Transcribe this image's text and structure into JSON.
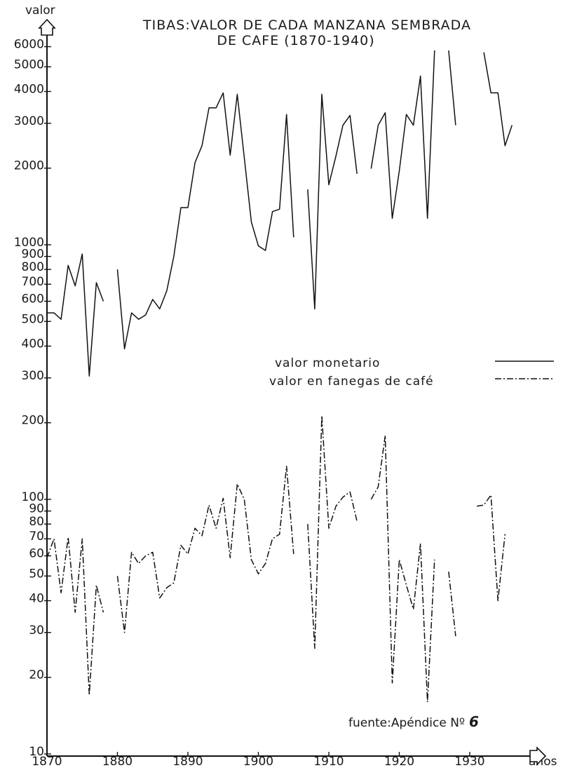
{
  "chart_data": {
    "type": "line",
    "title_line1": "TIBAS:VALOR DE CADA MANZANA SEMBRADA",
    "title_line2": "DE CAFE (1870-1940)",
    "ylabel": "valor",
    "xlabel": "años",
    "y_scale": "log",
    "ylim": [
      10,
      6000
    ],
    "xlim": [
      1870,
      1936
    ],
    "y_ticks": [
      10,
      20,
      30,
      40,
      50,
      60,
      70,
      80,
      90,
      100,
      200,
      300,
      400,
      500,
      600,
      700,
      800,
      900,
      1000,
      2000,
      3000,
      4000,
      5000,
      6000
    ],
    "y_tick_labels": [
      "10",
      "20",
      "30",
      "40",
      "50",
      "60",
      "70",
      "80",
      "90",
      "100",
      "200",
      "300",
      "400",
      "500",
      "600",
      "700",
      "800",
      "900",
      "1000",
      "2000",
      "3000",
      "4000",
      "5000",
      "6000"
    ],
    "x_ticks": [
      1870,
      1880,
      1890,
      1900,
      1910,
      1920,
      1930
    ],
    "x_tick_labels": [
      "1870",
      "1880",
      "1890",
      "1900",
      "1910",
      "1920",
      "1930"
    ],
    "grid": false,
    "legend": "center-right",
    "source_label": "fuente:Apéndice Nº",
    "source_number": "6",
    "series": [
      {
        "name": "valor monetario",
        "style": "solid",
        "segments": [
          [
            [
              1870,
              540
            ],
            [
              1871,
              540
            ],
            [
              1872,
              510
            ],
            [
              1873,
              830
            ],
            [
              1874,
              690
            ],
            [
              1875,
              920
            ],
            [
              1876,
              305
            ],
            [
              1877,
              710
            ],
            [
              1878,
              600
            ]
          ],
          [
            [
              1880,
              800
            ],
            [
              1881,
              390
            ],
            [
              1882,
              540
            ],
            [
              1883,
              510
            ],
            [
              1884,
              530
            ],
            [
              1885,
              610
            ],
            [
              1886,
              560
            ],
            [
              1887,
              660
            ],
            [
              1888,
              900
            ],
            [
              1889,
              1400
            ],
            [
              1890,
              1400
            ],
            [
              1891,
              2100
            ],
            [
              1892,
              2450
            ],
            [
              1893,
              3450
            ],
            [
              1894,
              3450
            ],
            [
              1895,
              3950
            ],
            [
              1896,
              2250
            ],
            [
              1897,
              3900
            ],
            [
              1898,
              2200
            ],
            [
              1899,
              1230
            ],
            [
              1900,
              990
            ],
            [
              1901,
              950
            ],
            [
              1902,
              1350
            ],
            [
              1903,
              1380
            ],
            [
              1904,
              3250
            ],
            [
              1905,
              1070
            ]
          ],
          [
            [
              1907,
              1650
            ],
            [
              1908,
              560
            ],
            [
              1909,
              3900
            ],
            [
              1910,
              1720
            ],
            [
              1911,
              2230
            ],
            [
              1912,
              2950
            ],
            [
              1913,
              3220
            ],
            [
              1914,
              1900
            ]
          ],
          [
            [
              1916,
              1990
            ],
            [
              1917,
              2950
            ],
            [
              1918,
              3300
            ],
            [
              1919,
              1270
            ],
            [
              1920,
              1950
            ],
            [
              1921,
              3250
            ],
            [
              1922,
              2950
            ],
            [
              1923,
              4600
            ],
            [
              1924,
              1270
            ],
            [
              1925,
              5800
            ]
          ],
          [
            [
              1927,
              5800
            ],
            [
              1928,
              2950
            ]
          ],
          [
            [
              1932,
              5700
            ],
            [
              1933,
              3950
            ],
            [
              1934,
              3950
            ],
            [
              1935,
              2450
            ],
            [
              1936,
              2950
            ]
          ]
        ]
      },
      {
        "name": "valor en fanegas de café",
        "style": "dashdot",
        "segments": [
          [
            [
              1870,
              59
            ],
            [
              1871,
              70
            ],
            [
              1872,
              43
            ],
            [
              1873,
              71
            ],
            [
              1874,
              36
            ],
            [
              1875,
              70
            ],
            [
              1876,
              17
            ],
            [
              1877,
              46
            ],
            [
              1878,
              36
            ]
          ],
          [
            [
              1880,
              50
            ],
            [
              1881,
              30
            ],
            [
              1882,
              62
            ],
            [
              1883,
              56
            ],
            [
              1884,
              60
            ],
            [
              1885,
              62
            ],
            [
              1886,
              41
            ],
            [
              1887,
              45
            ],
            [
              1888,
              47
            ],
            [
              1889,
              66
            ],
            [
              1890,
              61
            ],
            [
              1891,
              77
            ],
            [
              1892,
              72
            ],
            [
              1893,
              95
            ],
            [
              1894,
              77
            ],
            [
              1895,
              101
            ],
            [
              1896,
              59
            ],
            [
              1897,
              115
            ],
            [
              1898,
              100
            ],
            [
              1899,
              58
            ],
            [
              1900,
              51
            ],
            [
              1901,
              56
            ],
            [
              1902,
              70
            ],
            [
              1903,
              73
            ],
            [
              1904,
              135
            ],
            [
              1905,
              61
            ]
          ],
          [
            [
              1907,
              80
            ],
            [
              1908,
              26
            ],
            [
              1909,
              213
            ],
            [
              1910,
              77
            ],
            [
              1911,
              94
            ],
            [
              1912,
              102
            ],
            [
              1913,
              107
            ],
            [
              1914,
              82
            ]
          ],
          [
            [
              1916,
              100
            ],
            [
              1917,
              112
            ],
            [
              1918,
              178
            ],
            [
              1919,
              19
            ],
            [
              1920,
              58
            ],
            [
              1921,
              46
            ],
            [
              1922,
              37
            ],
            [
              1923,
              67
            ],
            [
              1924,
              16
            ],
            [
              1925,
              58
            ]
          ],
          [
            [
              1927,
              52
            ],
            [
              1928,
              29
            ]
          ],
          [
            [
              1931,
              94
            ],
            [
              1932,
              95
            ],
            [
              1933,
              104
            ],
            [
              1934,
              40
            ],
            [
              1935,
              73
            ]
          ]
        ]
      }
    ]
  }
}
